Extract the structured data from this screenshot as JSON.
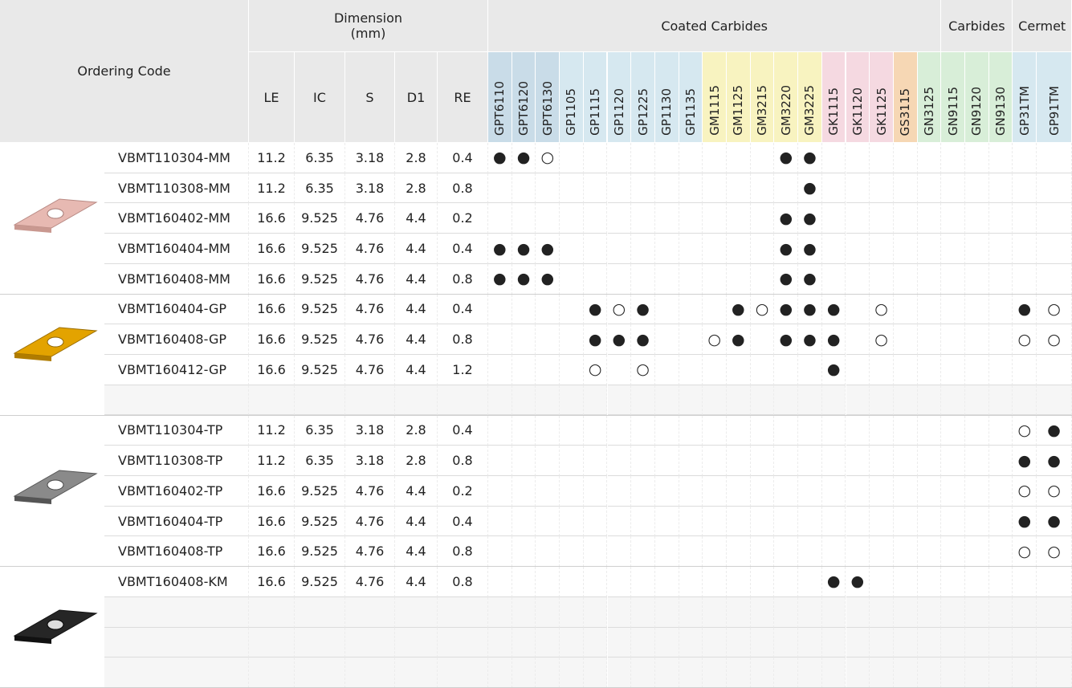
{
  "header": {
    "ordering_code": "Ordering Code",
    "dimension_title": "Dimension",
    "dimension_unit": "(mm)"
  },
  "dimension_columns": [
    "LE",
    "IC",
    "S",
    "D1",
    "RE"
  ],
  "grade_groups": [
    {
      "title": "Coated Carbides",
      "grades": [
        {
          "name": "GPT6110",
          "color": "#c9dce8"
        },
        {
          "name": "GPT6120",
          "color": "#c9dce8"
        },
        {
          "name": "GPT6130",
          "color": "#c9dce8"
        },
        {
          "name": "GP1105",
          "color": "#d6e8f0"
        },
        {
          "name": "GP1115",
          "color": "#d6e8f0"
        },
        {
          "name": "GP1120",
          "color": "#d6e8f0"
        },
        {
          "name": "GP1225",
          "color": "#d6e8f0"
        },
        {
          "name": "GP1130",
          "color": "#d6e8f0"
        },
        {
          "name": "GP1135",
          "color": "#d6e8f0"
        },
        {
          "name": "GM1115",
          "color": "#f8f3c0"
        },
        {
          "name": "GM1125",
          "color": "#f8f3c0"
        },
        {
          "name": "GM3215",
          "color": "#f8f3c0"
        },
        {
          "name": "GM3220",
          "color": "#f8f3c0"
        },
        {
          "name": "GM3225",
          "color": "#f8f3c0"
        },
        {
          "name": "GK1115",
          "color": "#f5d9e1"
        },
        {
          "name": "GK1120",
          "color": "#f5d9e1"
        },
        {
          "name": "GK1125",
          "color": "#f5d9e1"
        },
        {
          "name": "GS3115",
          "color": "#f6d7b4"
        },
        {
          "name": "GN3125",
          "color": "#d8eed8"
        }
      ]
    },
    {
      "title": "Carbides",
      "grades": [
        {
          "name": "GN9115",
          "color": "#d8eed8"
        },
        {
          "name": "GN9120",
          "color": "#d8eed8"
        },
        {
          "name": "GN9130",
          "color": "#d8eed8"
        }
      ]
    },
    {
      "title": "Cermet",
      "grades": [
        {
          "name": "GP31TM",
          "color": "#d6e8f0"
        },
        {
          "name": "GP91TM",
          "color": "#d6e8f0"
        }
      ]
    }
  ],
  "sections": [
    {
      "rows": [
        {
          "code": "VBMT110304-MM",
          "dims": [
            11.2,
            6.35,
            3.18,
            2.8,
            0.4
          ],
          "grades": [
            "●",
            "●",
            "○",
            null,
            null,
            null,
            null,
            null,
            null,
            null,
            null,
            null,
            "●",
            "●",
            null,
            null,
            null,
            null,
            null,
            null,
            null,
            null,
            null,
            null
          ]
        },
        {
          "code": "VBMT110308-MM",
          "dims": [
            11.2,
            6.35,
            3.18,
            2.8,
            0.8
          ],
          "grades": [
            null,
            null,
            null,
            null,
            null,
            null,
            null,
            null,
            null,
            null,
            null,
            null,
            null,
            "●",
            null,
            null,
            null,
            null,
            null,
            null,
            null,
            null,
            null,
            null
          ]
        },
        {
          "code": "VBMT160402-MM",
          "dims": [
            16.6,
            9.525,
            4.76,
            4.4,
            0.2
          ],
          "grades": [
            null,
            null,
            null,
            null,
            null,
            null,
            null,
            null,
            null,
            null,
            null,
            null,
            "●",
            "●",
            null,
            null,
            null,
            null,
            null,
            null,
            null,
            null,
            null,
            null
          ]
        },
        {
          "code": "VBMT160404-MM",
          "dims": [
            16.6,
            9.525,
            4.76,
            4.4,
            0.4
          ],
          "grades": [
            "●",
            "●",
            "●",
            null,
            null,
            null,
            null,
            null,
            null,
            null,
            null,
            null,
            "●",
            "●",
            null,
            null,
            null,
            null,
            null,
            null,
            null,
            null,
            null,
            null
          ]
        },
        {
          "code": "VBMT160408-MM",
          "dims": [
            16.6,
            9.525,
            4.76,
            4.4,
            0.8
          ],
          "grades": [
            "●",
            "●",
            "●",
            null,
            null,
            null,
            null,
            null,
            null,
            null,
            null,
            null,
            "●",
            "●",
            null,
            null,
            null,
            null,
            null,
            null,
            null,
            null,
            null,
            null
          ]
        }
      ]
    },
    {
      "rows": [
        {
          "code": "VBMT160404-GP",
          "dims": [
            16.6,
            9.525,
            4.76,
            4.4,
            0.4
          ],
          "grades": [
            null,
            null,
            null,
            null,
            "●",
            "○",
            "●",
            null,
            null,
            null,
            "●",
            "○",
            "●",
            "●",
            "●",
            null,
            "○",
            null,
            null,
            null,
            null,
            null,
            "●",
            "○"
          ]
        },
        {
          "code": "VBMT160408-GP",
          "dims": [
            16.6,
            9.525,
            4.76,
            4.4,
            0.8
          ],
          "grades": [
            null,
            null,
            null,
            null,
            "●",
            "●",
            "●",
            null,
            null,
            "○",
            "●",
            null,
            "●",
            "●",
            "●",
            null,
            "○",
            null,
            null,
            null,
            null,
            null,
            "○",
            "○"
          ]
        },
        {
          "code": "VBMT160412-GP",
          "dims": [
            16.6,
            9.525,
            4.76,
            4.4,
            1.2
          ],
          "grades": [
            null,
            null,
            null,
            null,
            "○",
            null,
            "○",
            null,
            null,
            null,
            null,
            null,
            null,
            null,
            "●",
            null,
            null,
            null,
            null,
            null,
            null,
            null,
            null,
            null
          ]
        },
        null
      ]
    },
    {
      "rows": [
        {
          "code": "VBMT110304-TP",
          "dims": [
            11.2,
            6.35,
            3.18,
            2.8,
            0.4
          ],
          "grades": [
            null,
            null,
            null,
            null,
            null,
            null,
            null,
            null,
            null,
            null,
            null,
            null,
            null,
            null,
            null,
            null,
            null,
            null,
            null,
            null,
            null,
            null,
            "○",
            "●"
          ]
        },
        {
          "code": "VBMT110308-TP",
          "dims": [
            11.2,
            6.35,
            3.18,
            2.8,
            0.8
          ],
          "grades": [
            null,
            null,
            null,
            null,
            null,
            null,
            null,
            null,
            null,
            null,
            null,
            null,
            null,
            null,
            null,
            null,
            null,
            null,
            null,
            null,
            null,
            null,
            "●",
            "●"
          ]
        },
        {
          "code": "VBMT160402-TP",
          "dims": [
            16.6,
            9.525,
            4.76,
            4.4,
            0.2
          ],
          "grades": [
            null,
            null,
            null,
            null,
            null,
            null,
            null,
            null,
            null,
            null,
            null,
            null,
            null,
            null,
            null,
            null,
            null,
            null,
            null,
            null,
            null,
            null,
            "○",
            "○"
          ]
        },
        {
          "code": "VBMT160404-TP",
          "dims": [
            16.6,
            9.525,
            4.76,
            4.4,
            0.4
          ],
          "grades": [
            null,
            null,
            null,
            null,
            null,
            null,
            null,
            null,
            null,
            null,
            null,
            null,
            null,
            null,
            null,
            null,
            null,
            null,
            null,
            null,
            null,
            null,
            "●",
            "●"
          ]
        },
        {
          "code": "VBMT160408-TP",
          "dims": [
            16.6,
            9.525,
            4.76,
            4.4,
            0.8
          ],
          "grades": [
            null,
            null,
            null,
            null,
            null,
            null,
            null,
            null,
            null,
            null,
            null,
            null,
            null,
            null,
            null,
            null,
            null,
            null,
            null,
            null,
            null,
            null,
            "○",
            "○"
          ]
        }
      ]
    },
    {
      "rows": [
        {
          "code": "VBMT160408-KM",
          "dims": [
            16.6,
            9.525,
            4.76,
            4.4,
            0.8
          ],
          "grades": [
            null,
            null,
            null,
            null,
            null,
            null,
            null,
            null,
            null,
            null,
            null,
            null,
            null,
            null,
            "●",
            "●",
            null,
            null,
            null,
            null,
            null,
            null,
            null,
            null
          ]
        },
        null,
        null,
        null
      ]
    }
  ]
}
